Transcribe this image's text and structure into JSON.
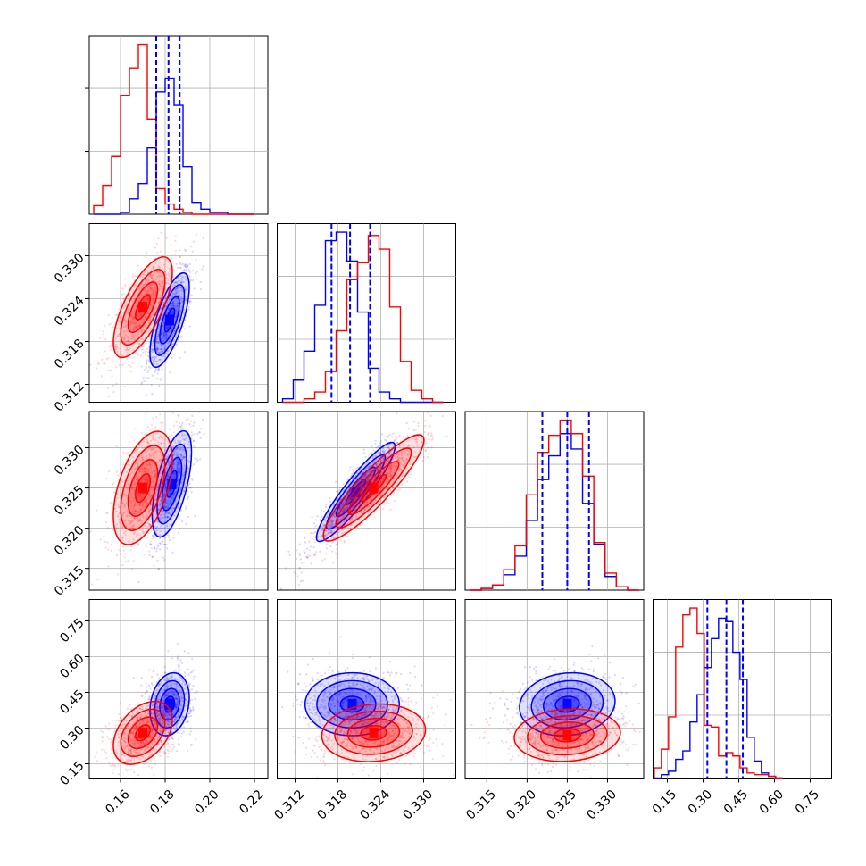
{
  "chart_data": {
    "type": "corner",
    "grid": true,
    "series": [
      {
        "name": "",
        "color": "#0000ff"
      },
      {
        "name": "",
        "color": "#ff0000"
      }
    ],
    "parameters": [
      {
        "range": [
          0.146,
          0.226
        ],
        "ticks": [
          0.16,
          0.18,
          0.2,
          0.22
        ],
        "tick_labels": [
          "0.16",
          "0.18",
          "0.20",
          "0.22"
        ],
        "histograms": {
          "x": [
            0.15,
            0.154,
            0.158,
            0.162,
            0.166,
            0.17,
            0.174,
            0.178,
            0.182,
            0.186,
            0.19,
            0.194,
            0.198,
            0.202,
            0.206,
            0.21,
            0.214,
            0.218
          ],
          "blue": [
            0,
            0,
            0,
            0.01,
            0.09,
            0.18,
            0.39,
            0.72,
            0.8,
            0.64,
            0.28,
            0.07,
            0.03,
            0.01,
            0.01,
            0,
            0,
            0
          ],
          "red": [
            0.05,
            0.17,
            0.34,
            0.7,
            0.86,
            1.0,
            0.56,
            0.15,
            0.06,
            0.03,
            0.01,
            0,
            0,
            0,
            0,
            0,
            0,
            0
          ]
        },
        "quantile_lines": [
          0.176,
          0.1815,
          0.1865
        ]
      },
      {
        "range": [
          0.3095,
          0.3345
        ],
        "ticks": [
          0.312,
          0.318,
          0.324,
          0.33
        ],
        "tick_labels": [
          "0.312",
          "0.318",
          "0.324",
          "0.330"
        ],
        "histograms": {
          "x": [
            0.311,
            0.3125,
            0.314,
            0.3155,
            0.317,
            0.3185,
            0.32,
            0.3215,
            0.323,
            0.3245,
            0.326,
            0.3275,
            0.329,
            0.3305,
            0.332
          ],
          "blue": [
            0.02,
            0.13,
            0.3,
            0.57,
            0.95,
            1.0,
            0.83,
            0.53,
            0.2,
            0.06,
            0.02,
            0,
            0,
            0,
            0
          ],
          "red": [
            0,
            0,
            0.02,
            0.06,
            0.18,
            0.42,
            0.72,
            0.82,
            0.98,
            0.9,
            0.56,
            0.24,
            0.07,
            0.02,
            0
          ]
        },
        "quantile_lines": [
          0.3171,
          0.3197,
          0.3225
        ]
      },
      {
        "range": [
          0.3123,
          0.3345
        ],
        "ticks": [
          0.315,
          0.32,
          0.325,
          0.33
        ],
        "tick_labels": [
          "0.315",
          "0.320",
          "0.325",
          "0.330"
        ],
        "histograms": {
          "x": [
            0.3136,
            0.315,
            0.3164,
            0.3178,
            0.3192,
            0.3206,
            0.322,
            0.3234,
            0.3248,
            0.3262,
            0.3276,
            0.329,
            0.3304,
            0.3318,
            0.3332
          ],
          "blue": [
            0,
            0.01,
            0.03,
            0.09,
            0.2,
            0.41,
            0.65,
            0.79,
            0.92,
            0.83,
            0.51,
            0.27,
            0.08,
            0.02,
            0
          ],
          "red": [
            0,
            0.01,
            0.03,
            0.12,
            0.26,
            0.56,
            0.81,
            0.91,
            1.0,
            0.92,
            0.67,
            0.28,
            0.1,
            0.02,
            0
          ]
        },
        "quantile_lines": [
          0.3219,
          0.325,
          0.3277
        ]
      },
      {
        "range": [
          0.09,
          0.84
        ],
        "ticks": [
          0.15,
          0.3,
          0.45,
          0.6,
          0.75
        ],
        "tick_labels": [
          "0.15",
          "0.30",
          "0.45",
          "0.60",
          "0.75"
        ],
        "histograms": {
          "x": [
            0.11,
            0.14,
            0.17,
            0.2,
            0.23,
            0.26,
            0.29,
            0.32,
            0.35,
            0.38,
            0.41,
            0.44,
            0.47,
            0.5,
            0.53,
            0.56,
            0.59,
            0.62
          ],
          "blue": [
            0,
            0.02,
            0.04,
            0.11,
            0.16,
            0.33,
            0.49,
            0.65,
            0.82,
            0.94,
            0.92,
            0.74,
            0.58,
            0.24,
            0.1,
            0.03,
            0.01,
            0
          ],
          "red": [
            0.06,
            0.17,
            0.36,
            0.77,
            0.96,
            1.0,
            0.85,
            0.31,
            0.3,
            0.13,
            0.15,
            0.13,
            0.06,
            0.03,
            0.02,
            0.02,
            0.01,
            0
          ]
        },
        "quantile_lines": [
          0.318,
          0.398,
          0.467
        ]
      }
    ],
    "pairs": [
      {
        "row": 1,
        "col": 0,
        "blue": {
          "mean": [
            0.182,
            0.321
          ],
          "sd": [
            0.004,
            0.003
          ],
          "rho": 0.7
        },
        "red": {
          "mean": [
            0.17,
            0.3228
          ],
          "sd": [
            0.006,
            0.0032
          ],
          "rho": 0.7
        }
      },
      {
        "row": 2,
        "col": 0,
        "blue": {
          "mean": [
            0.183,
            0.3255
          ],
          "sd": [
            0.004,
            0.003
          ],
          "rho": 0.6
        },
        "red": {
          "mean": [
            0.17,
            0.325
          ],
          "sd": [
            0.006,
            0.0032
          ],
          "rho": 0.5
        }
      },
      {
        "row": 2,
        "col": 1,
        "blue": {
          "mean": [
            0.3205,
            0.3245
          ],
          "sd": [
            0.0025,
            0.0028
          ],
          "rho": 0.92
        },
        "red": {
          "mean": [
            0.323,
            0.325
          ],
          "sd": [
            0.0032,
            0.003
          ],
          "rho": 0.9
        }
      },
      {
        "row": 3,
        "col": 0,
        "blue": {
          "mean": [
            0.182,
            0.4
          ],
          "sd": [
            0.004,
            0.06
          ],
          "rho": 0.2
        },
        "red": {
          "mean": [
            0.17,
            0.28
          ],
          "sd": [
            0.006,
            0.06
          ],
          "rho": 0.4
        }
      },
      {
        "row": 3,
        "col": 1,
        "blue": {
          "mean": [
            0.32,
            0.4
          ],
          "sd": [
            0.003,
            0.06
          ],
          "rho": 0.0
        },
        "red": {
          "mean": [
            0.323,
            0.28
          ],
          "sd": [
            0.0033,
            0.055
          ],
          "rho": 0.1
        }
      },
      {
        "row": 3,
        "col": 2,
        "blue": {
          "mean": [
            0.325,
            0.4
          ],
          "sd": [
            0.0027,
            0.06
          ],
          "rho": 0.1
        },
        "red": {
          "mean": [
            0.325,
            0.27
          ],
          "sd": [
            0.003,
            0.05
          ],
          "rho": 0.1
        }
      }
    ]
  }
}
